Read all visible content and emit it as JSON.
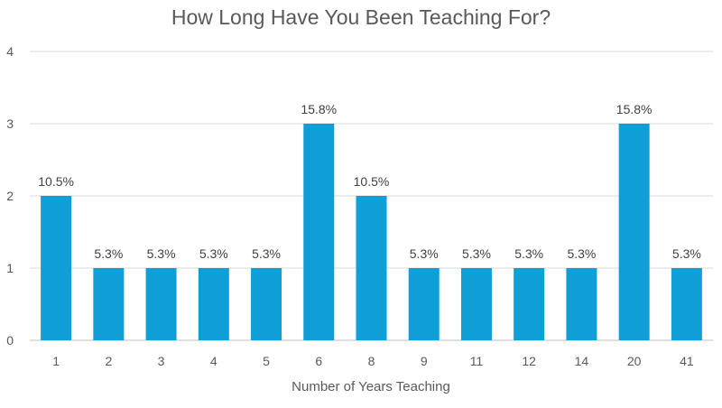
{
  "chart_data": {
    "type": "bar",
    "title": "How Long Have You Been Teaching For?",
    "xlabel": "Number of Years Teaching",
    "ylabel": "",
    "ylim": [
      0,
      4
    ],
    "yticks": [
      0,
      1,
      2,
      3,
      4
    ],
    "grid": true,
    "bar_color": "#0f9ed5",
    "categories": [
      "1",
      "2",
      "3",
      "4",
      "5",
      "6",
      "8",
      "9",
      "11",
      "12",
      "14",
      "20",
      "41"
    ],
    "values": [
      2,
      1,
      1,
      1,
      1,
      3,
      2,
      1,
      1,
      1,
      1,
      3,
      1
    ],
    "data_labels": [
      "10.5%",
      "5.3%",
      "5.3%",
      "5.3%",
      "5.3%",
      "15.8%",
      "10.5%",
      "5.3%",
      "5.3%",
      "5.3%",
      "5.3%",
      "15.8%",
      "5.3%"
    ]
  }
}
